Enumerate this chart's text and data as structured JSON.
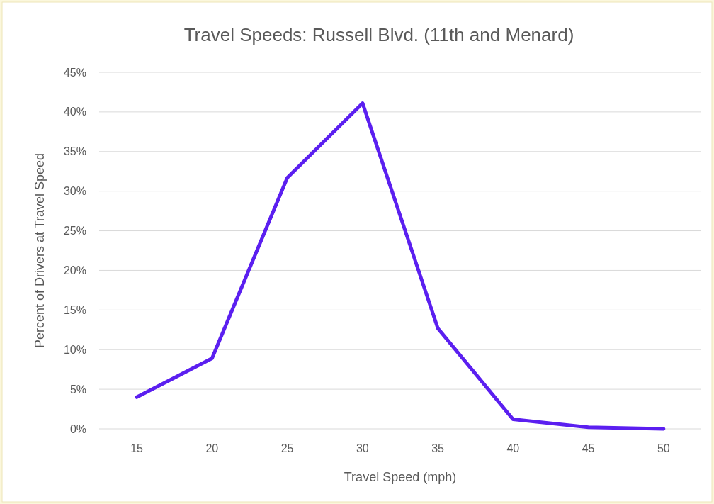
{
  "chart_data": {
    "type": "line",
    "title": "Travel Speeds: Russell Blvd. (11th and Menard)",
    "xlabel": "Travel Speed (mph)",
    "ylabel": "Percent of Drivers at Travel Speed",
    "categories": [
      "15",
      "20",
      "25",
      "30",
      "35",
      "40",
      "45",
      "50"
    ],
    "series": [
      {
        "color": "#5b1ff0",
        "values": [
          4.0,
          8.9,
          31.7,
          41.1,
          12.7,
          1.2,
          0.2,
          0.0
        ]
      }
    ],
    "ylim": [
      0,
      45
    ],
    "yticks": [
      {
        "value": 0,
        "label": "0%"
      },
      {
        "value": 5,
        "label": "5%"
      },
      {
        "value": 10,
        "label": "10%"
      },
      {
        "value": 15,
        "label": "15%"
      },
      {
        "value": 20,
        "label": "20%"
      },
      {
        "value": 25,
        "label": "25%"
      },
      {
        "value": 30,
        "label": "30%"
      },
      {
        "value": 35,
        "label": "35%"
      },
      {
        "value": 40,
        "label": "40%"
      },
      {
        "value": 45,
        "label": "45%"
      }
    ],
    "grid": "y",
    "marker": "none",
    "line_style": "solid"
  }
}
